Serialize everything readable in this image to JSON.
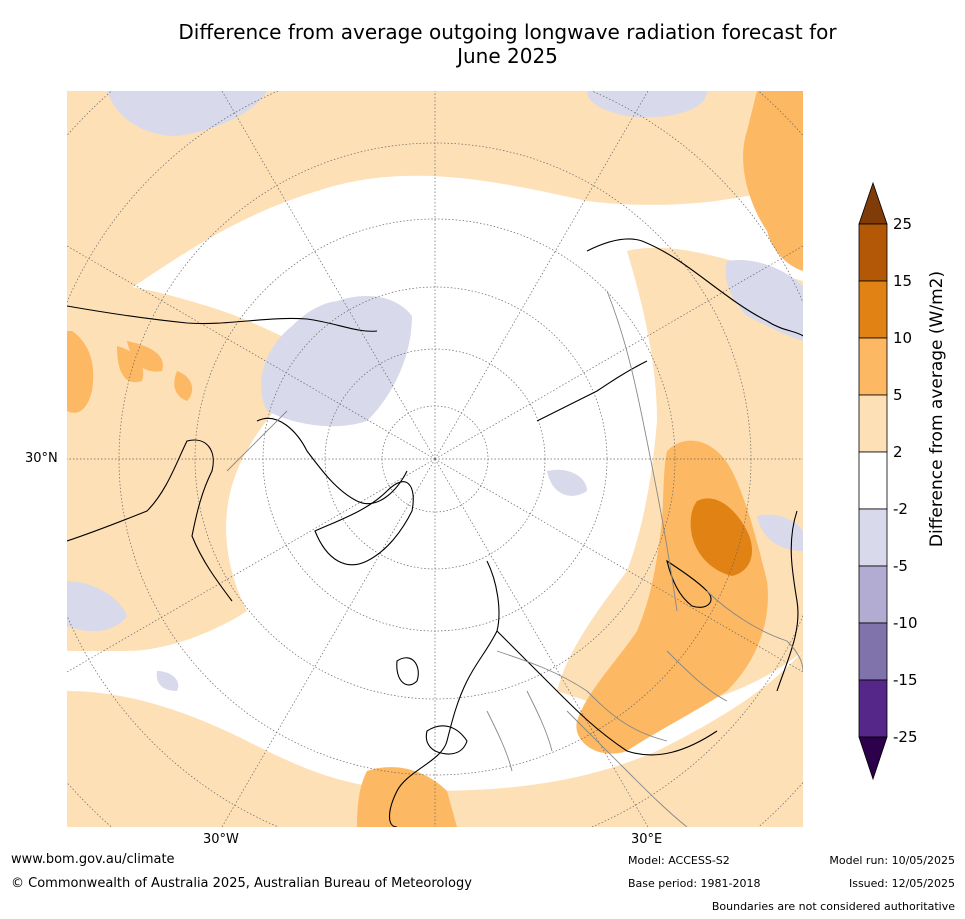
{
  "title_line1": "Difference from average outgoing longwave radiation forecast for",
  "title_line2": "June 2025",
  "axis_labels": {
    "lat_30n": "30°N",
    "lon_30w": "30°W",
    "lon_30e": "30°E"
  },
  "colorbar": {
    "title": "Difference from average (W/m2)",
    "ticks": [
      "25",
      "15",
      "10",
      "5",
      "2",
      "-2",
      "-5",
      "-10",
      "-15",
      "-25"
    ],
    "colors": {
      "gt25": "#7f3b08",
      "15_25": "#b35806",
      "10_15": "#e08214",
      "5_10": "#fdb863",
      "2_5": "#fee0b6",
      "neutral": "#ffffff",
      "m5_m2": "#d8daeb",
      "m10_m5": "#b2abd2",
      "m15_m10": "#8073ac",
      "m25_m15": "#542788",
      "lt_m25": "#2d004b"
    }
  },
  "footer": {
    "website": "www.bom.gov.au/climate",
    "copyright": "© Commonwealth of Australia 2025, Australian Bureau of Meteorology",
    "model": "Model: ACCESS-S2",
    "base_period": "Base period: 1981-2018",
    "model_run": "Model run: 10/05/2025",
    "issued": "Issued: 12/05/2025",
    "disclaimer": "Boundaries are not considered authoritative"
  }
}
